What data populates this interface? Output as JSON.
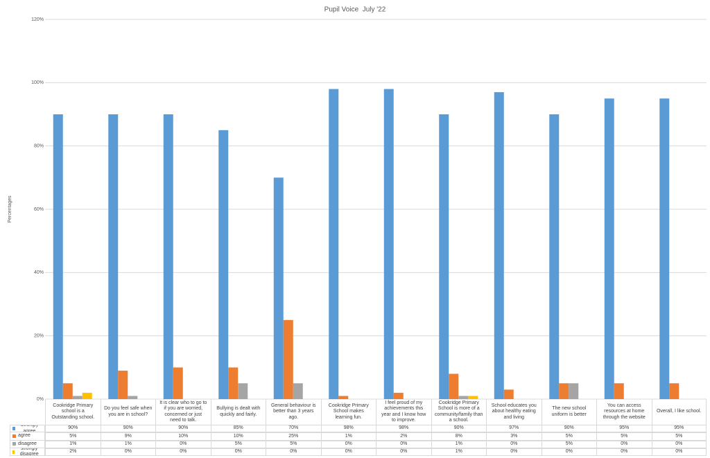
{
  "chart_data": {
    "type": "bar",
    "title": "Pupil Voice  July '22",
    "y_label": "Percentages",
    "categories": [
      "Cookridge Primary school is a Outstanding school.",
      "Do you feel safe when you are in school?",
      "It is clear who to go to if you are worried, concerned or just need to talk.",
      "Bullying is dealt with quickly and fairly.",
      "General behaviour is better than 3 years ago.",
      "Cookridge Primary School makes learning fun.",
      "I feel proud of my achievements this year and I know how to improve.",
      "Cookridge Primary School is more of a community/family than a school.",
      "School educates you about healthy eating and living",
      "The new school uniform is better",
      "You can access resources at home through the website",
      "Overall, I like school."
    ],
    "series": [
      {
        "name": "Strongly agree",
        "color": "#5b9bd5",
        "values": [
          90,
          90,
          90,
          85,
          70,
          98,
          98,
          90,
          97,
          90,
          95,
          95
        ],
        "value_labels": [
          "90%",
          "90%",
          "90%",
          "85%",
          "70%",
          "98%",
          "98%",
          "90%",
          "97%",
          "90%",
          "95%",
          "95%"
        ]
      },
      {
        "name": "agree",
        "color": "#ed7d31",
        "values": [
          5,
          9,
          10,
          10,
          25,
          1,
          2,
          8,
          3,
          5,
          5,
          5
        ],
        "value_labels": [
          "5%",
          "9%",
          "10%",
          "10%",
          "25%",
          "1%",
          "2%",
          "8%",
          "3%",
          "5%",
          "5%",
          "5%"
        ]
      },
      {
        "name": "disagree",
        "color": "#a5a5a5",
        "values": [
          1,
          1,
          0,
          5,
          5,
          0,
          0,
          1,
          0,
          5,
          0,
          0
        ],
        "value_labels": [
          "1%",
          "1%",
          "0%",
          "5%",
          "5%",
          "0%",
          "0%",
          "1%",
          "0%",
          "5%",
          "0%",
          "0%"
        ]
      },
      {
        "name": "strongly disagree",
        "color": "#ffc000",
        "values": [
          2,
          0,
          0,
          0,
          0,
          0,
          0,
          1,
          0,
          0,
          0,
          0
        ],
        "value_labels": [
          "2%",
          "0%",
          "0%",
          "0%",
          "0%",
          "0%",
          "0%",
          "1%",
          "0%",
          "0%",
          "0%",
          "0%"
        ]
      }
    ],
    "ylim": [
      0,
      120
    ],
    "yticks": [
      {
        "value": 0,
        "label": "0%"
      },
      {
        "value": 20,
        "label": "20%"
      },
      {
        "value": 40,
        "label": "40%"
      },
      {
        "value": 60,
        "label": "60%"
      },
      {
        "value": 80,
        "label": "80%"
      },
      {
        "value": 100,
        "label": "100%"
      },
      {
        "value": 120,
        "label": "120%"
      }
    ],
    "grid": true
  }
}
